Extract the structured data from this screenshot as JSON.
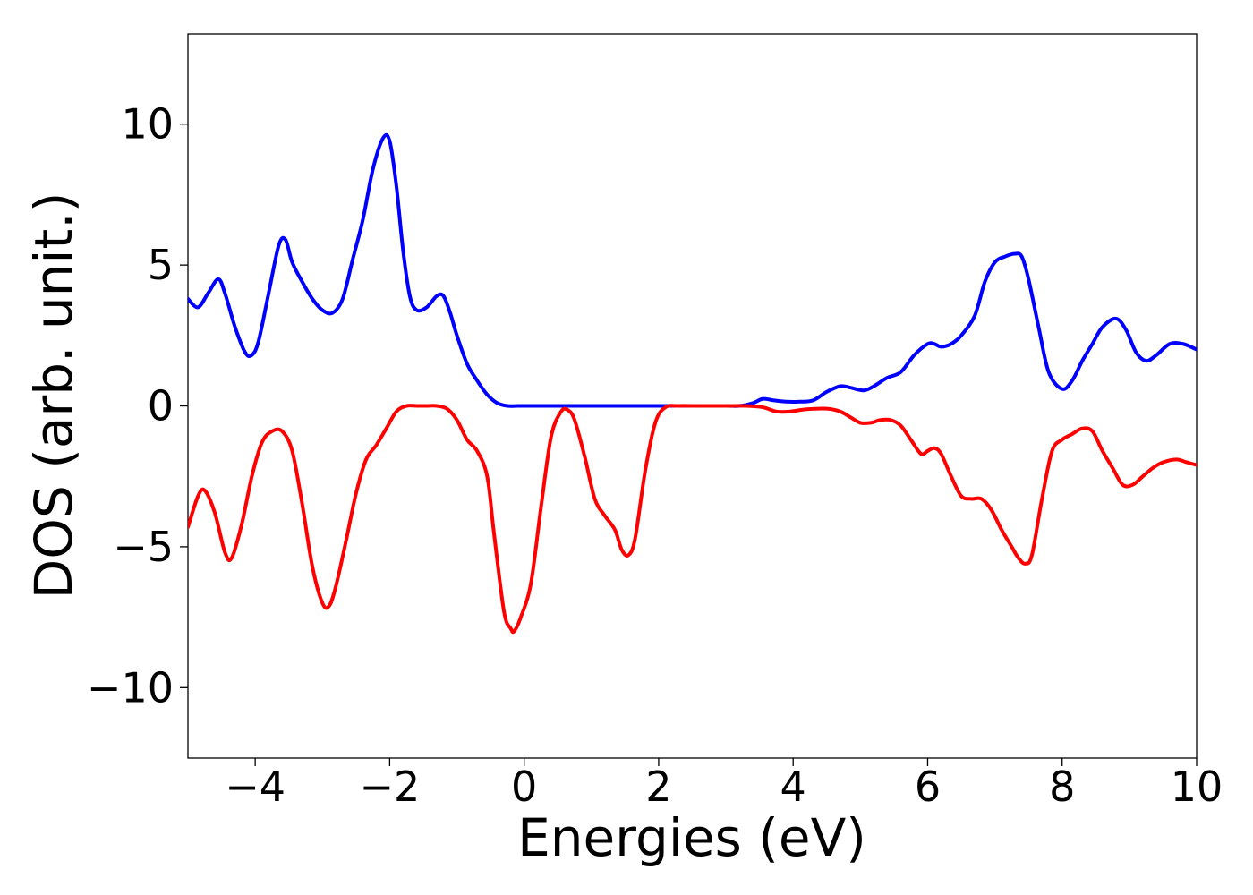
{
  "chart_data": {
    "type": "line",
    "title": "",
    "xlabel": "Energies (eV)",
    "ylabel": "DOS (arb. unit.)",
    "xlim": [
      -5,
      10
    ],
    "ylim": [
      -12.5,
      13.2
    ],
    "xticks": [
      -4,
      -2,
      0,
      2,
      4,
      6,
      8,
      10
    ],
    "yticks": [
      -10,
      -5,
      0,
      5,
      10
    ],
    "xtick_labels": [
      "−4",
      "−2",
      "0",
      "2",
      "4",
      "6",
      "8",
      "10"
    ],
    "ytick_labels": [
      "−10",
      "−5",
      "0",
      "5",
      "10"
    ],
    "grid": false,
    "legend": "none",
    "series": [
      {
        "color": "#0000ff",
        "x": [
          -5.0,
          -4.85,
          -4.7,
          -4.55,
          -4.45,
          -4.3,
          -4.15,
          -4.05,
          -3.95,
          -3.8,
          -3.65,
          -3.55,
          -3.45,
          -3.3,
          -3.15,
          -3.0,
          -2.85,
          -2.7,
          -2.55,
          -2.4,
          -2.25,
          -2.1,
          -2.0,
          -1.9,
          -1.8,
          -1.7,
          -1.6,
          -1.45,
          -1.3,
          -1.2,
          -1.1,
          -1.0,
          -0.85,
          -0.7,
          -0.55,
          -0.4,
          -0.25,
          -0.1,
          0.0,
          0.5,
          1.0,
          1.5,
          2.0,
          2.5,
          3.0,
          3.2,
          3.4,
          3.55,
          3.7,
          3.9,
          4.1,
          4.3,
          4.5,
          4.7,
          4.85,
          5.05,
          5.2,
          5.4,
          5.6,
          5.8,
          6.0,
          6.1,
          6.2,
          6.35,
          6.5,
          6.7,
          6.85,
          7.0,
          7.15,
          7.3,
          7.4,
          7.5,
          7.65,
          7.8,
          8.0,
          8.15,
          8.3,
          8.45,
          8.6,
          8.8,
          8.95,
          9.1,
          9.25,
          9.4,
          9.6,
          9.8,
          10.0
        ],
        "y": [
          3.8,
          3.5,
          4.0,
          4.5,
          4.0,
          2.8,
          1.9,
          1.8,
          2.3,
          4.0,
          5.7,
          5.9,
          5.1,
          4.4,
          3.8,
          3.4,
          3.3,
          3.8,
          5.2,
          6.6,
          8.4,
          9.5,
          9.4,
          7.8,
          5.5,
          3.9,
          3.4,
          3.5,
          3.9,
          3.9,
          3.3,
          2.5,
          1.5,
          0.9,
          0.4,
          0.1,
          0.0,
          0.0,
          0.0,
          0.0,
          0.0,
          0.0,
          0.0,
          0.0,
          0.0,
          0.0,
          0.1,
          0.25,
          0.2,
          0.15,
          0.15,
          0.2,
          0.5,
          0.7,
          0.65,
          0.55,
          0.7,
          1.0,
          1.2,
          1.8,
          2.2,
          2.2,
          2.1,
          2.2,
          2.5,
          3.2,
          4.4,
          5.1,
          5.3,
          5.4,
          5.3,
          4.5,
          2.8,
          1.2,
          0.6,
          0.9,
          1.6,
          2.2,
          2.8,
          3.1,
          2.7,
          1.9,
          1.6,
          1.8,
          2.2,
          2.2,
          2.0
        ]
      },
      {
        "color": "#ff0000",
        "x": [
          -5.0,
          -4.85,
          -4.75,
          -4.6,
          -4.45,
          -4.35,
          -4.2,
          -4.05,
          -3.9,
          -3.75,
          -3.6,
          -3.45,
          -3.3,
          -3.15,
          -3.0,
          -2.9,
          -2.8,
          -2.65,
          -2.5,
          -2.35,
          -2.2,
          -2.05,
          -1.9,
          -1.75,
          -1.6,
          -1.45,
          -1.3,
          -1.15,
          -1.0,
          -0.85,
          -0.7,
          -0.55,
          -0.45,
          -0.3,
          -0.2,
          -0.15,
          -0.05,
          0.1,
          0.25,
          0.4,
          0.55,
          0.65,
          0.75,
          0.9,
          1.05,
          1.2,
          1.35,
          1.45,
          1.55,
          1.65,
          1.8,
          1.95,
          2.1,
          2.3,
          2.6,
          3.0,
          3.3,
          3.55,
          3.75,
          3.95,
          4.2,
          4.5,
          4.7,
          4.85,
          5.0,
          5.15,
          5.3,
          5.45,
          5.6,
          5.75,
          5.9,
          6.0,
          6.1,
          6.2,
          6.35,
          6.5,
          6.65,
          6.8,
          6.95,
          7.1,
          7.25,
          7.35,
          7.45,
          7.55,
          7.7,
          7.85,
          8.0,
          8.15,
          8.3,
          8.45,
          8.6,
          8.75,
          8.9,
          9.05,
          9.2,
          9.35,
          9.5,
          9.7,
          9.85,
          10.0
        ],
        "y": [
          -4.3,
          -3.2,
          -3.0,
          -3.8,
          -5.2,
          -5.4,
          -4.2,
          -2.5,
          -1.3,
          -0.9,
          -0.9,
          -1.6,
          -3.5,
          -5.7,
          -7.0,
          -7.1,
          -6.4,
          -4.8,
          -3.1,
          -1.9,
          -1.4,
          -0.8,
          -0.2,
          0.0,
          0.0,
          0.0,
          0.0,
          -0.1,
          -0.5,
          -1.2,
          -1.6,
          -2.5,
          -4.5,
          -7.3,
          -7.9,
          -8.0,
          -7.5,
          -6.3,
          -3.6,
          -1.1,
          -0.2,
          -0.15,
          -0.5,
          -1.8,
          -3.3,
          -3.9,
          -4.4,
          -5.1,
          -5.3,
          -4.7,
          -2.3,
          -0.6,
          -0.05,
          0.0,
          0.0,
          0.0,
          0.0,
          -0.05,
          -0.2,
          -0.2,
          -0.12,
          -0.1,
          -0.2,
          -0.4,
          -0.6,
          -0.6,
          -0.5,
          -0.5,
          -0.7,
          -1.2,
          -1.7,
          -1.6,
          -1.5,
          -1.7,
          -2.5,
          -3.2,
          -3.3,
          -3.3,
          -3.7,
          -4.4,
          -5.0,
          -5.4,
          -5.6,
          -5.3,
          -3.3,
          -1.6,
          -1.2,
          -1.0,
          -0.8,
          -0.9,
          -1.6,
          -2.2,
          -2.8,
          -2.8,
          -2.5,
          -2.2,
          -2.0,
          -1.9,
          -2.0,
          -2.1
        ]
      }
    ]
  }
}
